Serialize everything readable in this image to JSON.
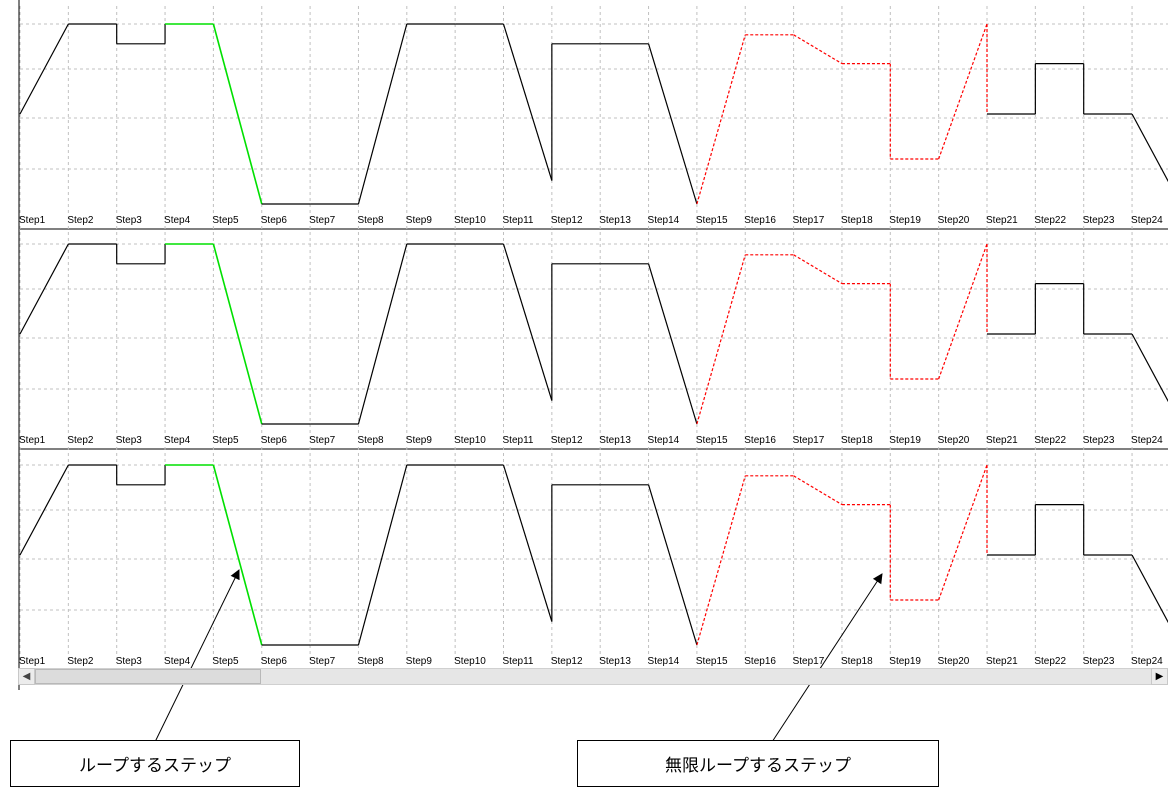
{
  "chart_data": {
    "type": "line",
    "panel_count": 3,
    "categories": [
      "Step1",
      "Step2",
      "Step3",
      "Step4",
      "Step5",
      "Step6",
      "Step7",
      "Step8",
      "Step9",
      "Step10",
      "Step11",
      "Step12",
      "Step13",
      "Step14",
      "Step15",
      "Step16",
      "Step17",
      "Step18",
      "Step19",
      "Step20",
      "Step21",
      "Step22",
      "Step23",
      "Step24"
    ],
    "ylim": [
      0,
      100
    ],
    "grid": true,
    "points": [
      [
        0,
        50
      ],
      [
        1,
        100
      ],
      [
        2,
        100
      ],
      [
        2,
        89
      ],
      [
        3,
        89
      ],
      [
        3,
        100
      ],
      [
        4,
        100
      ],
      [
        5,
        0
      ],
      [
        6,
        0
      ],
      [
        7,
        0
      ],
      [
        8,
        100
      ],
      [
        9,
        100
      ],
      [
        10,
        100
      ],
      [
        11,
        13
      ],
      [
        11,
        89
      ],
      [
        12,
        89
      ],
      [
        13,
        89
      ],
      [
        14,
        0
      ],
      [
        15,
        94
      ],
      [
        16,
        94
      ],
      [
        17,
        78
      ],
      [
        18,
        78
      ],
      [
        18,
        25
      ],
      [
        19,
        25
      ],
      [
        20,
        100
      ],
      [
        20,
        50
      ],
      [
        21,
        50
      ],
      [
        21,
        78
      ],
      [
        22,
        78
      ],
      [
        22,
        50
      ],
      [
        23,
        50
      ],
      [
        24,
        0
      ]
    ],
    "segment_styles": [
      "black",
      "black",
      "black",
      "black",
      "black",
      "green",
      "green",
      "black",
      "black",
      "black",
      "black",
      "black",
      "black",
      "black",
      "black",
      "black",
      "black",
      "red",
      "red",
      "red",
      "red",
      "red",
      "red",
      "red",
      "red",
      "black",
      "black",
      "black",
      "black",
      "black",
      "black",
      "black"
    ],
    "colors": {
      "black": "#000000",
      "green": "#00e000",
      "red": "#ff0000",
      "grid": "#c0c0c0"
    }
  },
  "callouts": {
    "loop_step": "ループするステップ",
    "infinite_loop_step": "無限ループするステップ"
  },
  "scrollbar": {
    "left_arrow": "◀",
    "right_arrow": "▶"
  }
}
